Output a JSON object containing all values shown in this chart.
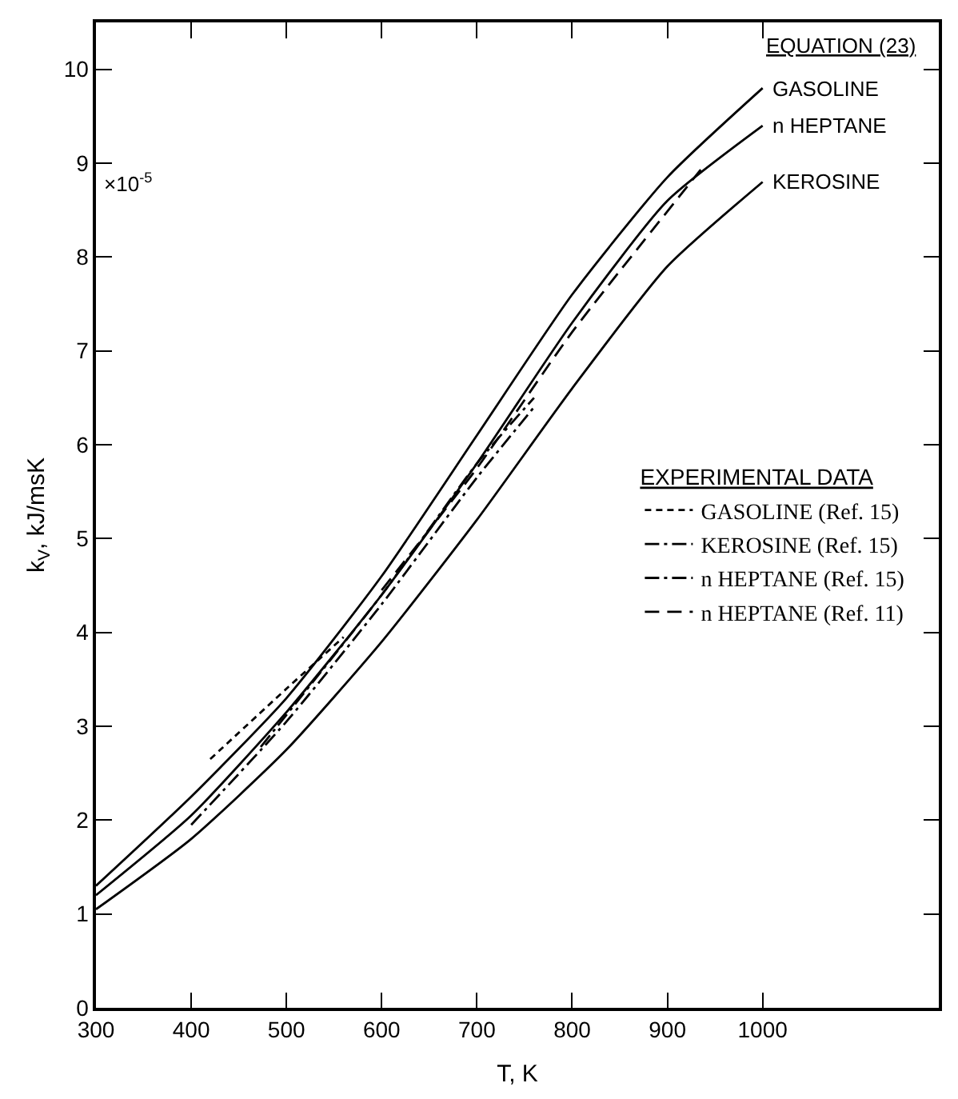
{
  "chart_data": {
    "type": "line",
    "xlabel": "T, K",
    "ylabel": "k$_{V}$, kJ/msK",
    "xlim": [
      300,
      1185
    ],
    "xticks": [
      300,
      400,
      500,
      600,
      700,
      800,
      900,
      1000
    ],
    "ylim": [
      0,
      10.5
    ],
    "yticks": [
      0,
      1,
      2,
      3,
      4,
      5,
      6,
      7,
      8,
      9,
      10
    ],
    "grid": false,
    "legend": "right",
    "legend_title": "EXPERIMENTAL DATA",
    "marker": "none",
    "annotations": [
      "EQUATION (23)",
      "×10$^{-5}$"
    ],
    "series": [
      {
        "name": "GASOLINE",
        "color": "#000000",
        "line_style": "solid",
        "x": [
          300,
          400,
          500,
          600,
          700,
          800,
          900,
          1000
        ],
        "values": [
          1.3,
          2.25,
          3.3,
          4.6,
          6.1,
          7.6,
          8.85,
          9.8
        ]
      },
      {
        "name": "n HEPTANE",
        "color": "#000000",
        "line_style": "solid",
        "x": [
          300,
          400,
          500,
          600,
          700,
          800,
          900,
          1000
        ],
        "values": [
          1.2,
          2.05,
          3.15,
          4.4,
          5.8,
          7.3,
          8.6,
          9.4
        ]
      },
      {
        "name": "KEROSINE",
        "color": "#000000",
        "line_style": "solid",
        "x": [
          300,
          400,
          500,
          600,
          700,
          800,
          900,
          1000
        ],
        "values": [
          1.05,
          1.8,
          2.75,
          3.9,
          5.2,
          6.6,
          7.9,
          8.8
        ]
      },
      {
        "name": "GASOLINE (Ref. 15)",
        "color": "#000000",
        "line_style": "dotted",
        "x": [
          420,
          500,
          560
        ],
        "values": [
          2.65,
          3.4,
          3.95
        ]
      },
      {
        "name": "KEROSINE (Ref. 15)",
        "color": "#000000",
        "line_style": "dashdot",
        "x": [
          400,
          500,
          600,
          700,
          760
        ],
        "values": [
          1.95,
          3.05,
          4.3,
          5.65,
          6.4
        ]
      },
      {
        "name": "n HEPTANE (Ref. 15)",
        "color": "#000000",
        "line_style": "dashdot",
        "x": [
          473,
          600,
          700,
          760
        ],
        "values": [
          2.78,
          4.4,
          5.8,
          6.5
        ]
      },
      {
        "name": "n HEPTANE (Ref. 11)",
        "color": "#000000",
        "line_style": "dashed",
        "x": [
          600,
          700,
          800,
          935
        ],
        "values": [
          4.45,
          5.75,
          7.2,
          8.93
        ]
      }
    ]
  }
}
